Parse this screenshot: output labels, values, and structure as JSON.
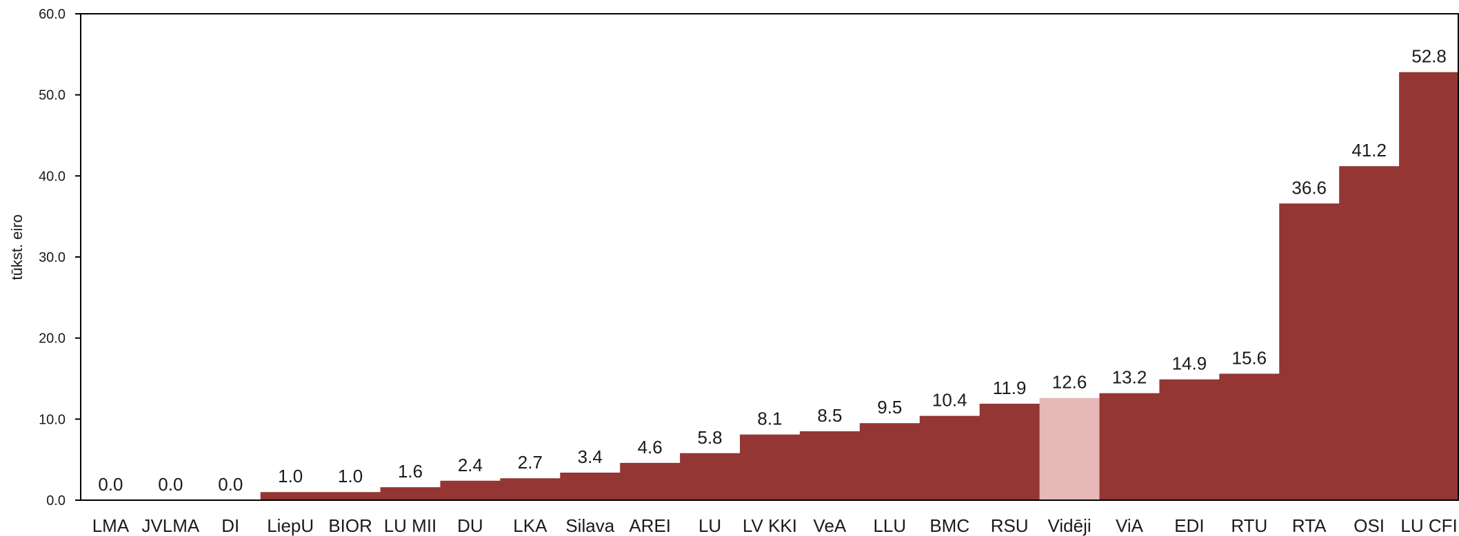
{
  "chart_data": {
    "type": "bar",
    "ylabel": "tūkst. eiro",
    "xlabel": "",
    "ylim": [
      0,
      60
    ],
    "yticks": [
      "0.0",
      "10.0",
      "20.0",
      "30.0",
      "40.0",
      "50.0",
      "60.0"
    ],
    "grid": false,
    "categories": [
      "LMA",
      "JVLMA",
      "DI",
      "LiepU",
      "BIOR",
      "LU MII",
      "DU",
      "LKA",
      "Silava",
      "AREI",
      "LU",
      "LV KKI",
      "VeA",
      "LLU",
      "BMC",
      "RSU",
      "Vidēji",
      "ViA",
      "EDI",
      "RTU",
      "RTA",
      "OSI",
      "LU CFI"
    ],
    "values": [
      0.0,
      0.0,
      0.0,
      1.0,
      1.0,
      1.6,
      2.4,
      2.7,
      3.4,
      4.6,
      5.8,
      8.1,
      8.5,
      9.5,
      10.4,
      11.9,
      12.6,
      13.2,
      14.9,
      15.6,
      36.6,
      41.2,
      52.8
    ],
    "value_labels": [
      "0.0",
      "0.0",
      "0.0",
      "1.0",
      "1.0",
      "1.6",
      "2.4",
      "2.7",
      "3.4",
      "4.6",
      "5.8",
      "8.1",
      "8.5",
      "9.5",
      "10.4",
      "11.9",
      "12.6",
      "13.2",
      "14.9",
      "15.6",
      "36.6",
      "41.2",
      "52.8"
    ],
    "highlight_category": "Vidēji",
    "colors": {
      "bar": "#943634",
      "highlight": "#e6b8b7",
      "axis": "#000000"
    }
  }
}
